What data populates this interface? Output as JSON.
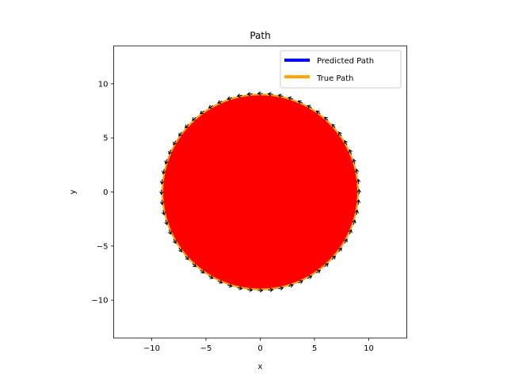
{
  "chart_data": {
    "type": "line",
    "title": "Path",
    "xlabel": "x",
    "ylabel": "y",
    "xlim": [
      -13.5,
      13.5
    ],
    "ylim": [
      -13.5,
      13.5
    ],
    "xticks": [
      -10,
      -5,
      0,
      5,
      10
    ],
    "yticks": [
      -10,
      -5,
      0,
      5,
      10
    ],
    "xtick_labels": [
      "−10",
      "−5",
      "0",
      "5",
      "10"
    ],
    "ytick_labels": [
      "−10",
      "−5",
      "0",
      "5",
      "10"
    ],
    "grid": false,
    "legend_position": "top-right",
    "fill": {
      "shape": "circle",
      "center": [
        0,
        0
      ],
      "radius": 9,
      "color": "#ff0000"
    },
    "series": [
      {
        "name": "Predicted Path",
        "color": "#0000ff",
        "shape": "circle",
        "center": [
          0,
          0
        ],
        "radius": 9
      },
      {
        "name": "True Path",
        "color": "#ffa500",
        "shape": "circle",
        "center": [
          0,
          0
        ],
        "radius": 9
      }
    ],
    "arrows": {
      "shape": "circle",
      "center": [
        0,
        0
      ],
      "radius": 9.1,
      "count": 60,
      "color": "#000000",
      "direction": "counterclockwise"
    }
  }
}
